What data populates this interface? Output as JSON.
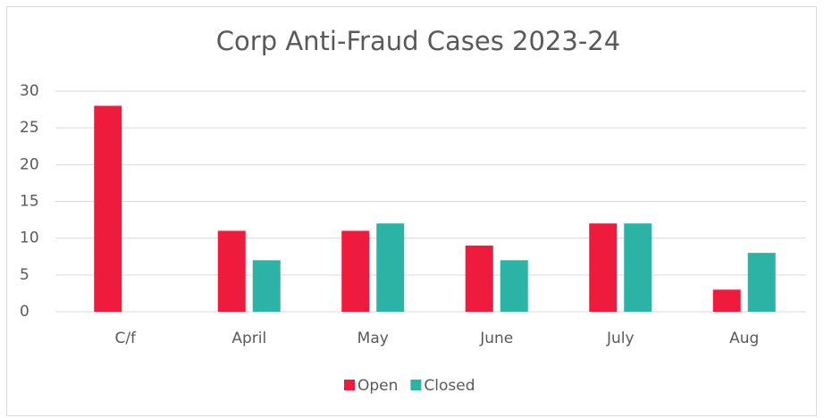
{
  "chart_data": {
    "type": "bar",
    "title": "Corp Anti-Fraud Cases 2023-24",
    "categories": [
      "C/f",
      "April",
      "May",
      "June",
      "July",
      "Aug"
    ],
    "series": [
      {
        "name": "Open",
        "color": "#ee1b3d",
        "values": [
          28,
          11,
          11,
          9,
          12,
          3
        ]
      },
      {
        "name": "Closed",
        "color": "#2bb3a5",
        "values": [
          0,
          7,
          12,
          7,
          12,
          8
        ]
      }
    ],
    "ylim": [
      0,
      30
    ],
    "yticks": [
      0,
      5,
      10,
      15,
      20,
      25,
      30
    ],
    "grid": true,
    "legend": "bottom"
  }
}
